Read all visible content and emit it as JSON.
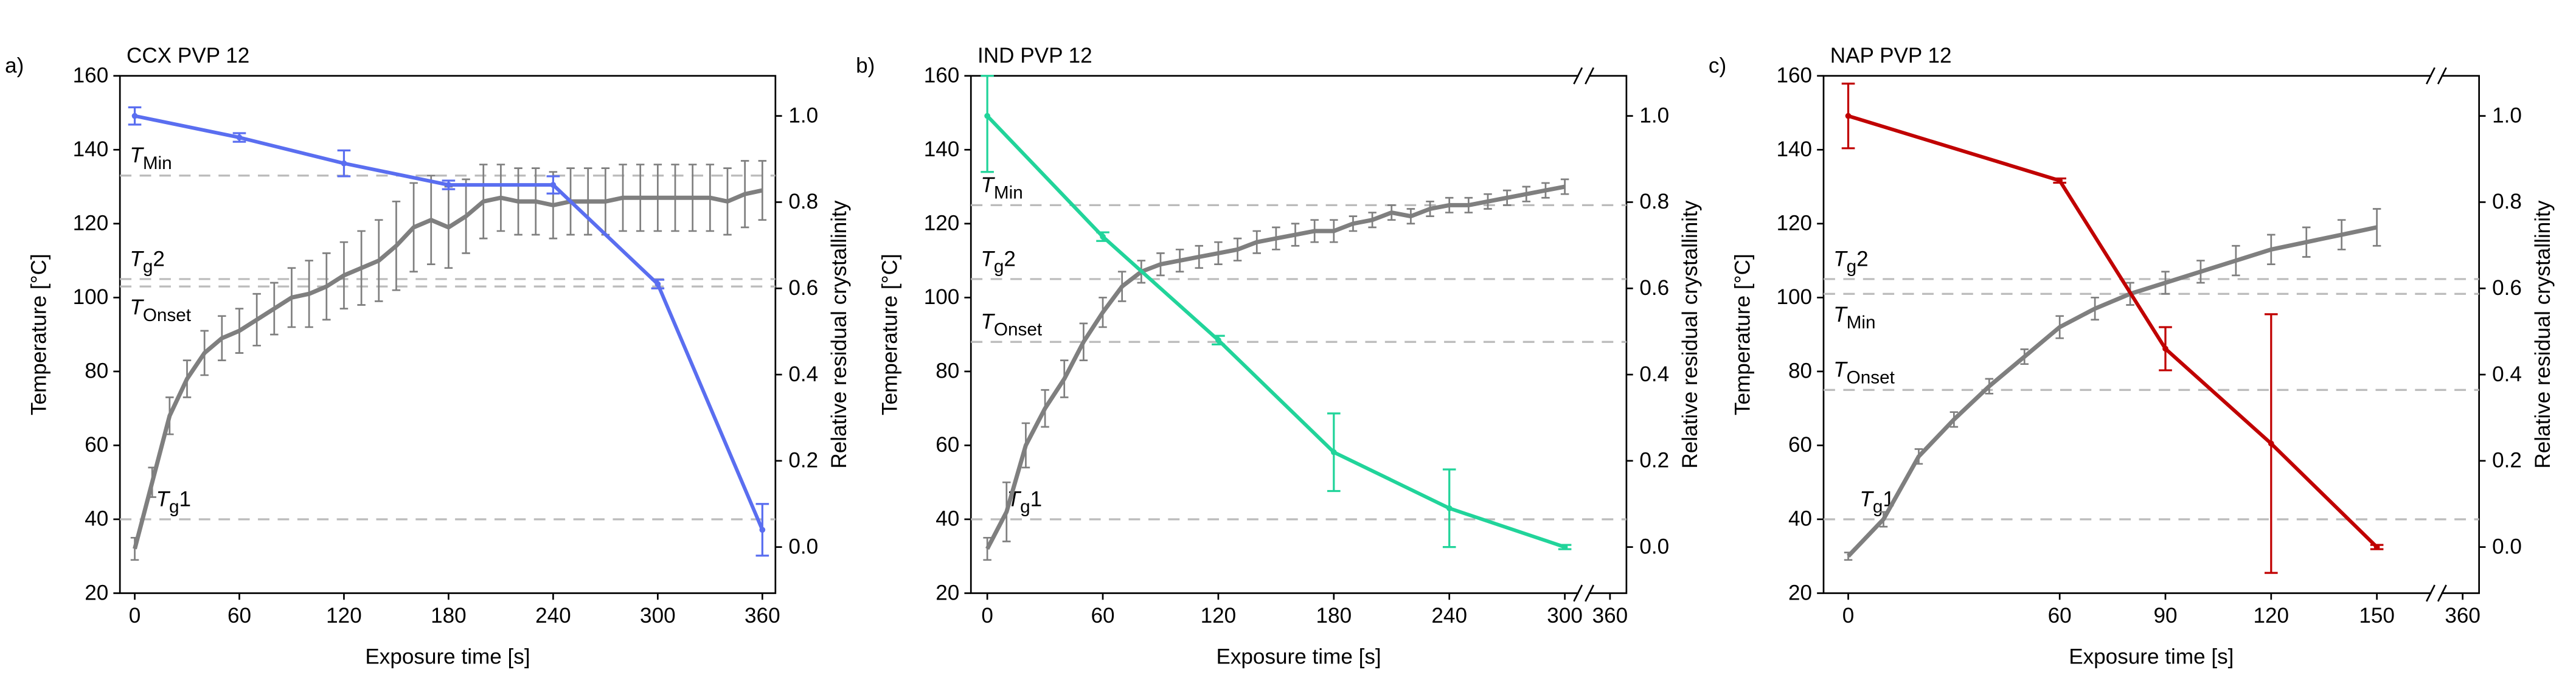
{
  "chart_data": [
    {
      "type": "line",
      "panel_label": "a)",
      "title": "CCX PVP 12",
      "x_label": "Exposure time [s]",
      "y_label": "Temperature [°C]",
      "y2_label": "Relative residual crystallinity",
      "xlim": [
        -8.5,
        367.5
      ],
      "ylim": [
        20,
        160
      ],
      "y2lim": [
        -0.107,
        1.093
      ],
      "xticks": [
        0,
        60,
        120,
        180,
        240,
        300,
        360
      ],
      "yticks": [
        20,
        40,
        60,
        80,
        100,
        120,
        140,
        160
      ],
      "y2ticks": [
        {
          "value": 0,
          "label": "0.0"
        },
        0.2,
        0.4,
        0.6,
        0.8,
        {
          "value": 1,
          "label": "1.0"
        }
      ],
      "series": [
        {
          "color": "#7f7f7f",
          "axis": "y",
          "x": [
            0,
            10,
            20,
            30,
            40,
            50,
            60,
            70,
            80,
            90,
            100,
            110,
            120,
            130,
            140,
            150,
            160,
            170,
            180,
            190,
            200,
            210,
            220,
            230,
            240,
            250,
            260,
            270,
            280,
            290,
            300,
            310,
            320,
            330,
            340,
            350,
            360
          ],
          "values": [
            32,
            50,
            68,
            78,
            85,
            89,
            91,
            94,
            97,
            100,
            101,
            103,
            106,
            108,
            110,
            114,
            119,
            121,
            119,
            122,
            126,
            127,
            126,
            126,
            125,
            126,
            126,
            126,
            127,
            127,
            127,
            127,
            127,
            127,
            126,
            128,
            129
          ],
          "errors": [
            3,
            4,
            5,
            5,
            6,
            6,
            6,
            7,
            7,
            8,
            9,
            9,
            9,
            10,
            11,
            12,
            12,
            12,
            11,
            10,
            10,
            9,
            9,
            9,
            9,
            9,
            9,
            9,
            9,
            9,
            9,
            9,
            9,
            9,
            9,
            9,
            8
          ]
        },
        {
          "color": "#5a6ef0",
          "axis": "y2",
          "x": [
            0,
            60,
            120,
            180,
            240,
            300,
            360
          ],
          "values": [
            1.0,
            0.95,
            0.89,
            0.84,
            0.84,
            0.61,
            0.04
          ],
          "errors": [
            0.02,
            0.01,
            0.03,
            0.01,
            0.02,
            0.01,
            0.06
          ]
        }
      ],
      "annotations": [
        {
          "value": 133,
          "symbol": "T",
          "subscript": "Min"
        },
        {
          "value": 105,
          "symbol": "T",
          "subscript": "g",
          "suffix": "2"
        },
        {
          "value": 103,
          "symbol": "T",
          "subscript": "Onset"
        },
        {
          "value": 40,
          "symbol": "T",
          "subscript": "g",
          "suffix": "1"
        }
      ]
    },
    {
      "type": "line",
      "panel_label": "b)",
      "title": "IND PVP 12",
      "x_label": "Exposure time [s]",
      "y_label": "Temperature [°C]",
      "y2_label": "Relative residual crystallinity",
      "xlim": [
        -8.5,
        332
      ],
      "ylim": [
        20,
        160
      ],
      "y2lim": [
        -0.107,
        1.093
      ],
      "xticks": [
        0,
        60,
        120,
        180,
        240,
        300
      ],
      "break_ticks": [
        360
      ],
      "yticks": [
        20,
        40,
        60,
        80,
        100,
        120,
        140,
        160
      ],
      "y2ticks": [
        {
          "value": 0,
          "label": "0.0"
        },
        0.2,
        0.4,
        0.6,
        0.8,
        {
          "value": 1,
          "label": "1.0"
        }
      ],
      "series": [
        {
          "color": "#7f7f7f",
          "axis": "y",
          "x": [
            0,
            10,
            20,
            30,
            40,
            50,
            60,
            70,
            80,
            90,
            100,
            110,
            120,
            130,
            140,
            150,
            160,
            170,
            180,
            190,
            200,
            210,
            220,
            230,
            240,
            250,
            260,
            270,
            280,
            290,
            300
          ],
          "values": [
            32,
            42,
            60,
            70,
            78,
            88,
            96,
            103,
            107,
            109,
            110,
            111,
            112,
            113,
            115,
            116,
            117,
            118,
            118,
            120,
            121,
            123,
            122,
            124,
            125,
            125,
            126,
            127,
            128,
            129,
            130
          ],
          "errors": [
            3,
            8,
            6,
            5,
            5,
            5,
            4,
            4,
            3,
            3,
            3,
            3,
            3,
            3,
            3,
            3,
            3,
            3,
            3,
            2,
            2,
            2,
            2,
            2,
            2,
            2,
            2,
            2,
            2,
            2,
            2
          ]
        },
        {
          "color": "#21d49a",
          "axis": "y2",
          "x": [
            0,
            60,
            120,
            180,
            240,
            300
          ],
          "values": [
            1.0,
            0.72,
            0.48,
            0.22,
            0.09,
            0.0
          ],
          "errors": [
            0.13,
            0.01,
            0.01,
            0.09,
            0.09,
            0.005
          ]
        }
      ],
      "annotations": [
        {
          "value": 125,
          "symbol": "T",
          "subscript": "Min"
        },
        {
          "value": 105,
          "symbol": "T",
          "subscript": "g",
          "suffix": "2"
        },
        {
          "value": 88,
          "symbol": "T",
          "subscript": "Onset"
        },
        {
          "value": 40,
          "symbol": "T",
          "subscript": "g",
          "suffix": "1"
        }
      ]
    },
    {
      "type": "line",
      "panel_label": "c)",
      "title": "NAP PVP 12",
      "x_label": "Exposure time [s]",
      "y_label": "Temperature [°C]",
      "y2_label": "Relative residual crystallinity",
      "xlim": [
        -7,
        179
      ],
      "ylim": [
        20,
        160
      ],
      "y2lim": [
        -0.107,
        1.093
      ],
      "xticks": [
        0,
        60,
        90,
        120,
        150
      ],
      "break_ticks": [
        360
      ],
      "yticks": [
        20,
        40,
        60,
        80,
        100,
        120,
        140,
        160
      ],
      "y2ticks": [
        {
          "value": 0,
          "label": "0.0"
        },
        0.2,
        0.4,
        0.6,
        0.8,
        {
          "value": 1,
          "label": "1.0"
        }
      ],
      "series": [
        {
          "color": "#7f7f7f",
          "axis": "y",
          "x": [
            0,
            10,
            20,
            30,
            40,
            50,
            60,
            70,
            80,
            90,
            100,
            110,
            120,
            130,
            140,
            150
          ],
          "values": [
            30,
            40,
            57,
            67,
            76,
            84,
            92,
            97,
            101,
            104,
            107,
            110,
            113,
            115,
            117,
            119
          ],
          "errors": [
            1,
            2,
            2,
            2,
            2,
            2,
            3,
            3,
            3,
            3,
            3,
            4,
            4,
            4,
            4,
            5
          ]
        },
        {
          "color": "#c00000",
          "axis": "y2",
          "x": [
            0,
            60,
            90,
            120,
            150
          ],
          "values": [
            1.0,
            0.85,
            0.46,
            0.24,
            0.0
          ],
          "errors": [
            0.075,
            0.005,
            0.05,
            0.3,
            0.005
          ]
        }
      ],
      "annotations": [
        {
          "value": 105,
          "symbol": "T",
          "subscript": "g",
          "suffix": "2"
        },
        {
          "value": 101,
          "symbol": "T",
          "subscript": "Min"
        },
        {
          "value": 75,
          "symbol": "T",
          "subscript": "Onset"
        },
        {
          "value": 40,
          "symbol": "T",
          "subscript": "g",
          "suffix": "1"
        }
      ]
    }
  ]
}
